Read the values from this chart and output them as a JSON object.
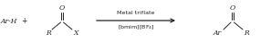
{
  "bg_color": "#ffffff",
  "text_color": "#222222",
  "arrow_color": "#222222",
  "label_arH": "Ar-H",
  "label_plus": "+",
  "label_R_left": "R",
  "label_X": "X",
  "label_O_left": "O",
  "label_above_arrow": "Metal triflate",
  "label_below_arrow": "[bmim][BF",
  "label_below_arrow_sub": "4",
  "label_below_arrow_end": "]",
  "label_Ar_right": "Ar",
  "label_R_right": "R",
  "label_O_right": "O",
  "figsize": [
    2.97,
    0.47
  ],
  "dpi": 100,
  "fs_main": 5.5,
  "fs_arrow": 4.6,
  "fs_sub": 3.8
}
